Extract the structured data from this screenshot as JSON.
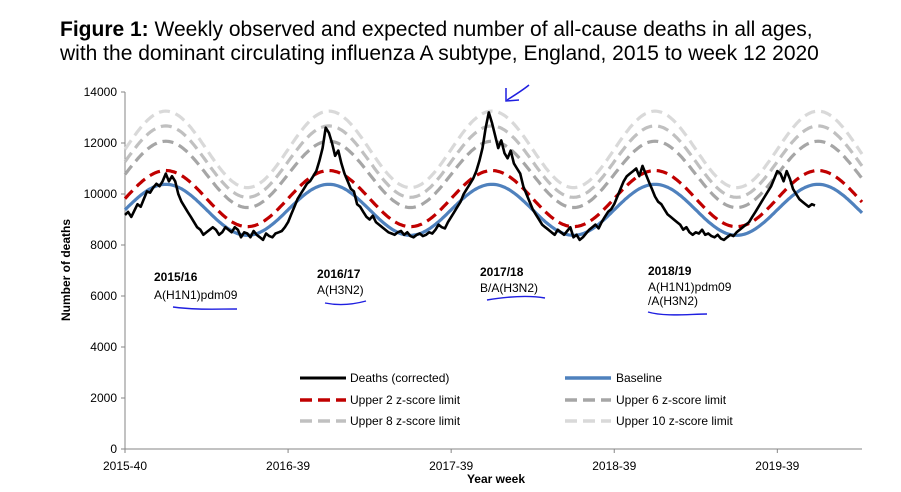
{
  "title": {
    "prefix": "Figure 1:",
    "line1": "Weekly observed and expected number of all-cause deaths in all ages,",
    "line2": "with the dominant circulating influenza A subtype, England, 2015 to week 12 2020"
  },
  "chart_data": {
    "type": "line",
    "xlabel": "Year week",
    "ylabel": "Number of deaths",
    "ylim": [
      0,
      14000
    ],
    "yticks": [
      0,
      2000,
      4000,
      6000,
      8000,
      10000,
      12000,
      14000
    ],
    "xticks": [
      {
        "week": 0,
        "label": "2015-40"
      },
      {
        "week": 52,
        "label": "2016-39"
      },
      {
        "week": 104,
        "label": "2017-39"
      },
      {
        "week": 156,
        "label": "2018-39"
      },
      {
        "week": 208,
        "label": "2019-39"
      }
    ],
    "x_range_weeks": [
      0,
      235
    ],
    "series": [
      {
        "name": "Deaths (corrected)",
        "color": "#000000",
        "style": "solid",
        "width": 2.6,
        "values": [
          9180,
          9300,
          9100,
          9350,
          9600,
          9500,
          9800,
          10100,
          10050,
          10250,
          10400,
          10300,
          10500,
          10800,
          10500,
          10700,
          10500,
          10000,
          9700,
          9500,
          9300,
          9100,
          8900,
          8700,
          8600,
          8400,
          8500,
          8600,
          8700,
          8600,
          8400,
          8500,
          8700,
          8600,
          8500,
          8700,
          8600,
          8300,
          8500,
          8450,
          8300,
          8550,
          8400,
          8300,
          8200,
          8450,
          8350,
          8300,
          8450,
          8500,
          8550,
          8700,
          8900,
          9200,
          9500,
          9800,
          10000,
          10200,
          10400,
          10500,
          10700,
          10900,
          11300,
          11800,
          12600,
          12400,
          12000,
          11500,
          11700,
          11200,
          10800,
          10500,
          10200,
          10100,
          9600,
          9500,
          9300,
          9100,
          9000,
          9150,
          8900,
          8800,
          8700,
          8600,
          8500,
          8450,
          8400,
          8500,
          8550,
          8400,
          8500,
          8350,
          8300,
          8400,
          8450,
          8350,
          8400,
          8500,
          8450,
          8600,
          8800,
          8700,
          8650,
          8900,
          9100,
          9300,
          9500,
          9700,
          10000,
          10200,
          10400,
          10600,
          10900,
          11300,
          11800,
          12600,
          13200,
          12800,
          12300,
          11800,
          12100,
          11600,
          11400,
          11700,
          11200,
          11000,
          10800,
          10300,
          10000,
          9700,
          9400,
          9200,
          9000,
          8800,
          8700,
          8600,
          8500,
          8400,
          8600,
          8500,
          8400,
          8550,
          8700,
          8300,
          8400,
          8200,
          8300,
          8450,
          8600,
          8700,
          8800,
          8650,
          8900,
          9100,
          9300,
          9400,
          9600,
          9900,
          10200,
          10500,
          10700,
          10800,
          10900,
          11000,
          10700,
          11100,
          10800,
          10500,
          10200,
          9900,
          9700,
          9600,
          9400,
          9200,
          9100,
          9000,
          8900,
          8800,
          8600,
          8700,
          8500,
          8400,
          8500,
          8450,
          8600,
          8400,
          8450,
          8350,
          8300,
          8400,
          8250,
          8200,
          8300,
          8400,
          8350,
          8500,
          8600,
          8700,
          8800,
          8900,
          9100,
          9300,
          9500,
          9700,
          9900,
          10100,
          10300,
          10600,
          10900,
          10800,
          10500,
          10900,
          10600,
          10200,
          10000,
          9800,
          9700,
          9600,
          9500,
          9600,
          9550
        ]
      },
      {
        "name": "Baseline",
        "color": "#4f81bd",
        "style": "solid",
        "width": 3.2,
        "amplitude": 1000,
        "center": 9380,
        "peak_week": 13
      },
      {
        "name": "Upper 2 z-score limit",
        "color": "#c00000",
        "style": "dash",
        "width": 3.2,
        "amplitude": 1100,
        "center": 9820,
        "peak_week": 13
      },
      {
        "name": "Upper 6 z-score limit",
        "color": "#a6a6a6",
        "style": "dash",
        "width": 3.2,
        "amplitude": 1300,
        "center": 10770,
        "peak_week": 13
      },
      {
        "name": "Upper 8 z-score limit",
        "color": "#c0c0c0",
        "style": "dash",
        "width": 3.2,
        "amplitude": 1400,
        "center": 11270,
        "peak_week": 13
      },
      {
        "name": "Upper 10 z-score limit",
        "color": "#d9d9d9",
        "style": "dash",
        "width": 3.2,
        "amplitude": 1500,
        "center": 11750,
        "peak_week": 13
      }
    ],
    "annotations": [
      {
        "season": "2015/16",
        "subtype": "A(H1N1)pdm09"
      },
      {
        "season": "2016/17",
        "subtype": "A(H3N2)"
      },
      {
        "season": "2017/18",
        "subtype": "B/A(H3N2)"
      },
      {
        "season": "2018/19",
        "subtype": "A(H1N1)pdm09",
        "subtype2": "/A(H3N2)"
      }
    ],
    "legend_position": "bottom-center"
  }
}
